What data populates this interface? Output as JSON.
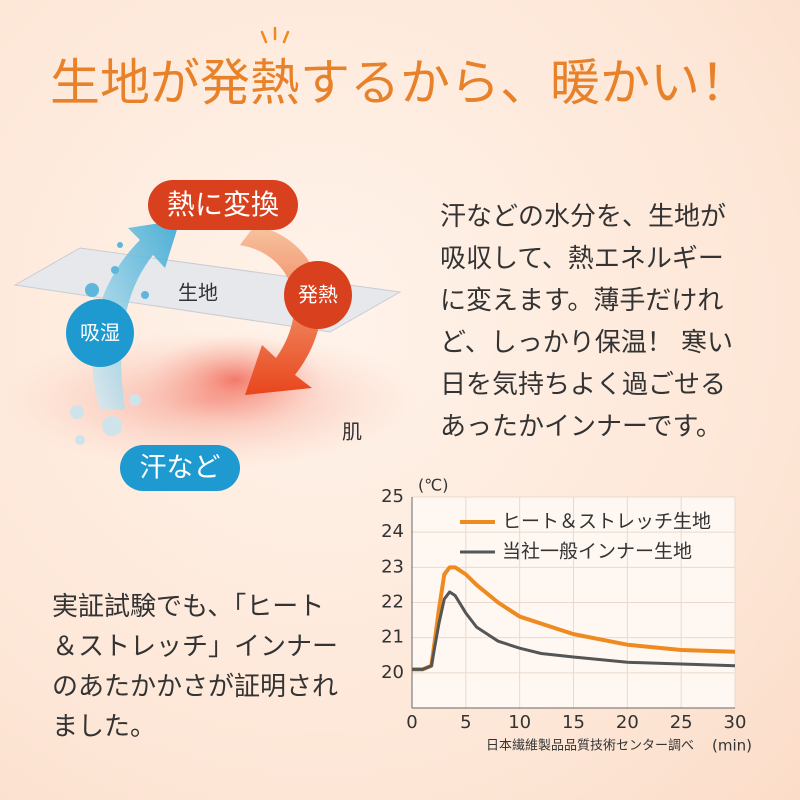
{
  "title": "生地が発熱するから、暖かい！",
  "diagram": {
    "convert": "熱に変換",
    "heat": "発熱",
    "absorb": "吸湿",
    "sweat": "汗など",
    "fabric": "生地",
    "skin": "肌"
  },
  "description": [
    "汗などの水分を、生地が",
    "吸収して、熱エネルギー",
    "に変えます。薄手だけれ",
    "ど、しっかり保温！ 寒い",
    "日を気持ちよく過ごせる",
    "あったかインナーです。"
  ],
  "note": [
    "実証試験でも、「ヒート",
    "＆ストレッチ」インナー",
    "のあたかかさが証明され",
    "ました。"
  ],
  "chart_data": {
    "type": "line",
    "y_unit": "(℃)",
    "x_unit": "(min)",
    "source": "日本繊維製品品質技術センター調べ",
    "x": [
      0,
      1,
      1.8,
      2.5,
      3,
      3.5,
      4,
      5,
      6,
      8,
      10,
      12,
      15,
      20,
      25,
      30
    ],
    "series": [
      {
        "name": "ヒート＆ストレッチ生地",
        "color": "#ee8a1f",
        "values": [
          20.1,
          20.1,
          20.2,
          21.8,
          22.8,
          23.0,
          23.0,
          22.8,
          22.5,
          22.0,
          21.6,
          21.4,
          21.1,
          20.8,
          20.65,
          20.6
        ]
      },
      {
        "name": "当社一般インナー生地",
        "color": "#555555",
        "values": [
          20.1,
          20.1,
          20.2,
          21.4,
          22.1,
          22.3,
          22.2,
          21.7,
          21.3,
          20.9,
          20.7,
          20.55,
          20.45,
          20.3,
          20.25,
          20.2
        ]
      }
    ],
    "xlim": [
      0,
      30
    ],
    "xticks": [
      0,
      5,
      10,
      15,
      20,
      25,
      30
    ],
    "ylim": [
      19,
      25
    ],
    "yticks": [
      20,
      21,
      22,
      23,
      24,
      25
    ],
    "grid": true
  }
}
